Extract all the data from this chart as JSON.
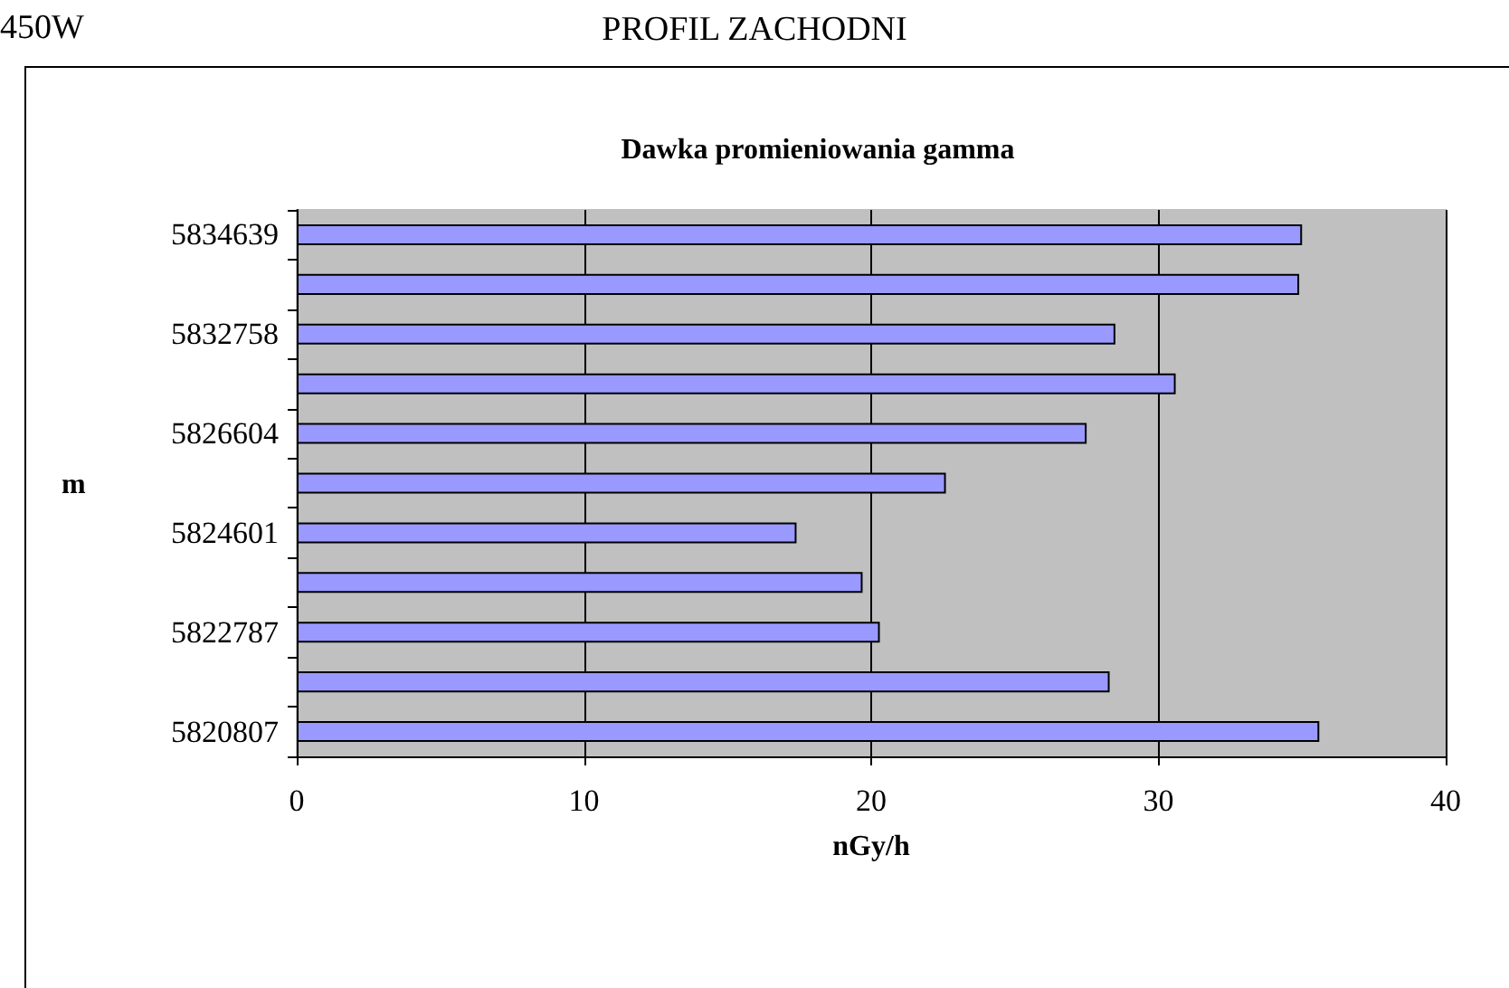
{
  "chart_data": {
    "type": "bar",
    "orientation": "horizontal",
    "title": "PROFIL ZACHODNI",
    "subtitle": "Dawka promieniowania gamma",
    "annotations": [
      "450W"
    ],
    "xlabel": "nGy/h",
    "ylabel": "m",
    "categories": [
      "5834639",
      null,
      "5832758",
      null,
      "5826604",
      null,
      "5824601",
      null,
      "5822787",
      null,
      "5820807"
    ],
    "values": [
      35.0,
      34.9,
      28.5,
      30.6,
      27.5,
      22.6,
      17.4,
      19.7,
      20.3,
      28.3,
      35.6
    ],
    "color": "#9999ff",
    "xlim": [
      0,
      40
    ],
    "xticks": [
      0,
      10,
      20,
      30,
      40
    ],
    "grid": "x"
  }
}
